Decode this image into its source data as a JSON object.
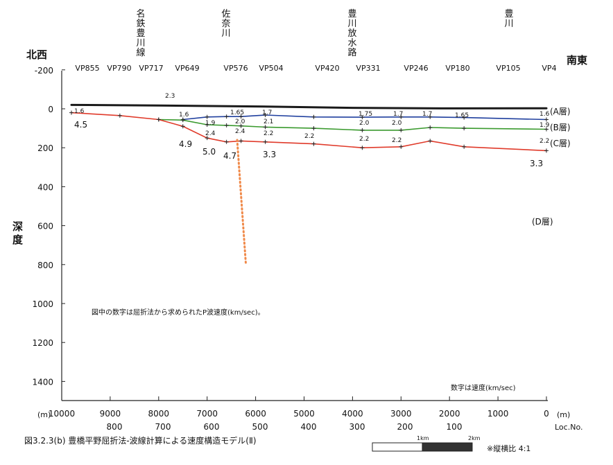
{
  "direction": {
    "left": "北西",
    "right": "南東"
  },
  "landmarks": [
    "名鉄豊川線",
    "佐奈川",
    "豊川放水路",
    "豊川"
  ],
  "vp_labels": [
    "VP855",
    "VP790",
    "VP717",
    "VP649",
    "VP576",
    "VP504",
    "VP420",
    "VP331",
    "VP246",
    "VP180",
    "VP105",
    "VP4"
  ],
  "y_axis": {
    "label": "深度",
    "ticks": [
      "-200",
      "0",
      "200",
      "400",
      "600",
      "800",
      "1000",
      "1200",
      "1400"
    ],
    "tick_values": [
      -200,
      0,
      200,
      400,
      600,
      800,
      1000,
      1200,
      1400
    ]
  },
  "x_axis": {
    "unit_left": "(m)",
    "unit_right": "(m)",
    "ticks": [
      "10000",
      "9000",
      "8000",
      "7000",
      "6000",
      "5000",
      "4000",
      "3000",
      "2000",
      "1000",
      "0"
    ],
    "tick_values": [
      10000,
      9000,
      8000,
      7000,
      6000,
      5000,
      4000,
      3000,
      2000,
      1000,
      0
    ],
    "loc_ticks": [
      "800",
      "700",
      "600",
      "500",
      "400",
      "300",
      "200",
      "100"
    ],
    "loc_label": "Loc.No."
  },
  "layers": [
    "(A層)",
    "(B層)",
    "(C層)",
    "(D層)"
  ],
  "annotation_note": "図中の数字は屈折法から求められたP波速度(km/sec)。",
  "speed_note": "数字は速度(km/sec)",
  "caption": "図3.2.3(b)  豊橋平野屈折法-波線計算による速度構造モデル(Ⅱ)",
  "scale": {
    "label_1": "1km",
    "label_2": "2km",
    "ratio": "※縦横比  4:1"
  },
  "velocity_labels": {
    "a_layer": [
      "1.6",
      "2.3",
      "1.6",
      "1.65",
      "1.7",
      "1.75",
      "1.7",
      "1.7",
      "1.65",
      "1.6"
    ],
    "b_layer": [
      "1.9",
      "2.0",
      "2.1",
      "2.0",
      "2.0",
      "1.9"
    ],
    "c_layer": [
      "2.4",
      "2.4",
      "2.2",
      "2.2",
      "2.2",
      "2.2",
      "2.2"
    ],
    "d_layer": [
      "4.5",
      "4.9",
      "5.0",
      "4.7",
      "3.3",
      "3.3"
    ]
  },
  "colors": {
    "surface": "#1a1a1a",
    "a_boundary": "#1f3f9e",
    "b_boundary": "#3a9a2e",
    "c_boundary": "#e03a2a",
    "fault": "#f08a4a"
  },
  "chart_data": {
    "type": "line",
    "x_unit": "m",
    "y_unit": "m",
    "xlim": [
      10000,
      0
    ],
    "ylim": [
      -200,
      1500
    ],
    "series": [
      {
        "color": "#1a1a1a",
        "points": [
          [
            9800,
            -20
          ],
          [
            8000,
            -17
          ],
          [
            6000,
            -12
          ],
          [
            4000,
            -5
          ],
          [
            2000,
            -2
          ],
          [
            0,
            -3
          ]
        ]
      },
      {
        "color": "#1f3f9e",
        "points": [
          [
            7500,
            55
          ],
          [
            7000,
            42
          ],
          [
            6600,
            40
          ],
          [
            6300,
            40
          ],
          [
            5800,
            32
          ],
          [
            4800,
            42
          ],
          [
            3800,
            43
          ],
          [
            3000,
            42
          ],
          [
            2400,
            42
          ],
          [
            1700,
            45
          ],
          [
            0,
            55
          ]
        ]
      },
      {
        "color": "#3a9a2e",
        "points": [
          [
            8000,
            55
          ],
          [
            7500,
            58
          ],
          [
            7000,
            82
          ],
          [
            6600,
            85
          ],
          [
            6300,
            88
          ],
          [
            5800,
            94
          ],
          [
            4800,
            100
          ],
          [
            3800,
            110
          ],
          [
            3000,
            110
          ],
          [
            2400,
            96
          ],
          [
            1700,
            100
          ],
          [
            0,
            105
          ]
        ]
      },
      {
        "color": "#e03a2a",
        "points": [
          [
            9800,
            20
          ],
          [
            8800,
            35
          ],
          [
            8000,
            55
          ],
          [
            7500,
            90
          ],
          [
            7000,
            150
          ],
          [
            6600,
            170
          ],
          [
            6300,
            165
          ],
          [
            5800,
            170
          ],
          [
            4800,
            180
          ],
          [
            3800,
            200
          ],
          [
            3000,
            195
          ],
          [
            2400,
            165
          ],
          [
            1700,
            195
          ],
          [
            0,
            215
          ]
        ]
      },
      {
        "color": "#f08a4a",
        "points": [
          [
            6380,
            160
          ],
          [
            6200,
            800
          ]
        ]
      }
    ]
  }
}
